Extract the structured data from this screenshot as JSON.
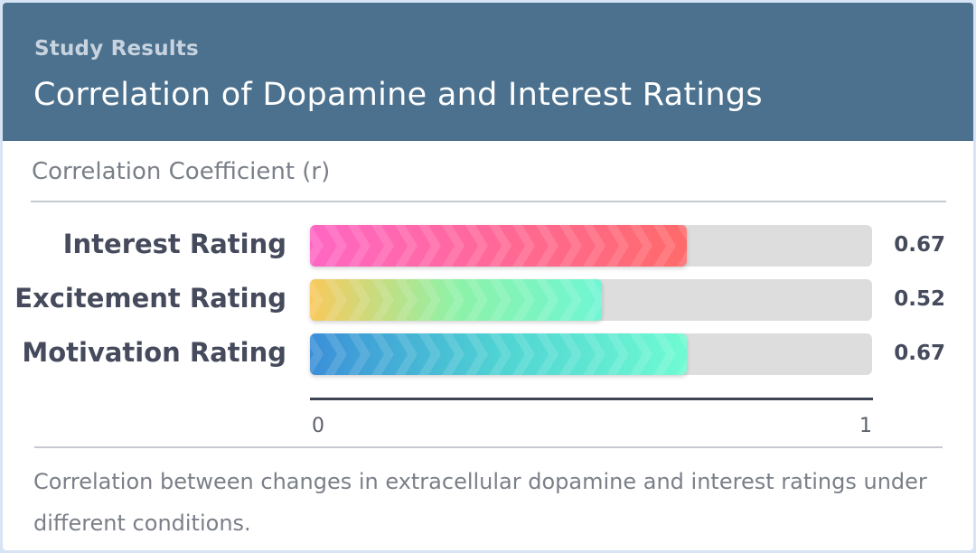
{
  "header": {
    "kicker": "Study Results",
    "title": "Correlation of Dopamine and Interest Ratings"
  },
  "chart_data": {
    "type": "bar",
    "orientation": "horizontal",
    "title": "Correlation of Dopamine and Interest Ratings",
    "metric_label": "Correlation Coefficient (r)",
    "categories": [
      "Interest Rating",
      "Excitement Rating",
      "Motivation Rating"
    ],
    "values": [
      0.67,
      0.52,
      0.67
    ],
    "value_labels": [
      "0.67",
      "0.52",
      "0.67"
    ],
    "xlim": [
      0,
      1
    ],
    "ticks": [
      "0",
      "1"
    ],
    "gradients": [
      [
        "#ff67c4",
        "#ff6a6a"
      ],
      [
        "#f8c95c",
        "#8ef2a8",
        "#6ff6d4"
      ],
      [
        "#3b8fd8",
        "#4fd3d3",
        "#6ffbd2"
      ]
    ],
    "caption": "Correlation between changes in extracellular dopamine and interest ratings under different conditions."
  }
}
